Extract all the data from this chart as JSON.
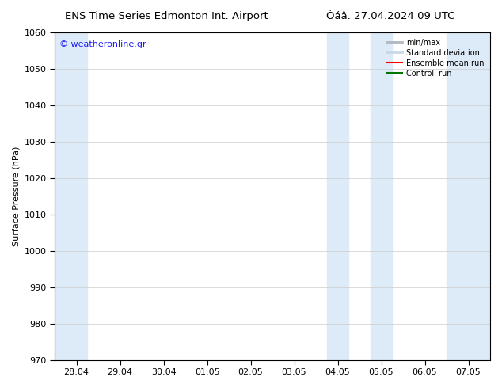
{
  "title_left": "ENS Time Series Edmonton Int. Airport",
  "title_right": "Óáâ. 27.04.2024 09 UTC",
  "ylabel": "Surface Pressure (hPa)",
  "ylim": [
    970,
    1060
  ],
  "yticks": [
    970,
    980,
    990,
    1000,
    1010,
    1020,
    1030,
    1040,
    1050,
    1060
  ],
  "xtick_labels": [
    "28.04",
    "29.04",
    "30.04",
    "01.05",
    "02.05",
    "03.05",
    "04.05",
    "05.05",
    "06.05",
    "07.05"
  ],
  "xtick_positions": [
    0,
    1,
    2,
    3,
    4,
    5,
    6,
    7,
    8,
    9
  ],
  "xlim": [
    -0.5,
    9.5
  ],
  "watermark": "© weatheronline.gr",
  "watermark_color": "#1a1aff",
  "bg_color": "#ffffff",
  "plot_bg_color": "#ffffff",
  "shaded_bands": [
    {
      "x_start": -0.5,
      "x_end": 0.25,
      "color": "#ddeaf7"
    },
    {
      "x_start": 5.75,
      "x_end": 6.25,
      "color": "#ddeaf7"
    },
    {
      "x_start": 6.75,
      "x_end": 7.25,
      "color": "#ddeaf7"
    },
    {
      "x_start": 8.5,
      "x_end": 9.5,
      "color": "#ddeaf7"
    }
  ],
  "legend_items": [
    {
      "label": "min/max",
      "color": "#b0b8c0",
      "linestyle": "-",
      "linewidth": 2
    },
    {
      "label": "Standard deviation",
      "color": "#c8d8e8",
      "linestyle": "-",
      "linewidth": 2
    },
    {
      "label": "Ensemble mean run",
      "color": "#ff0000",
      "linestyle": "-",
      "linewidth": 1.5
    },
    {
      "label": "Controll run",
      "color": "#007700",
      "linestyle": "-",
      "linewidth": 1.5
    }
  ],
  "grid_color": "#cccccc",
  "tick_color": "#000000",
  "font_size": 8,
  "title_font_size": 9.5
}
